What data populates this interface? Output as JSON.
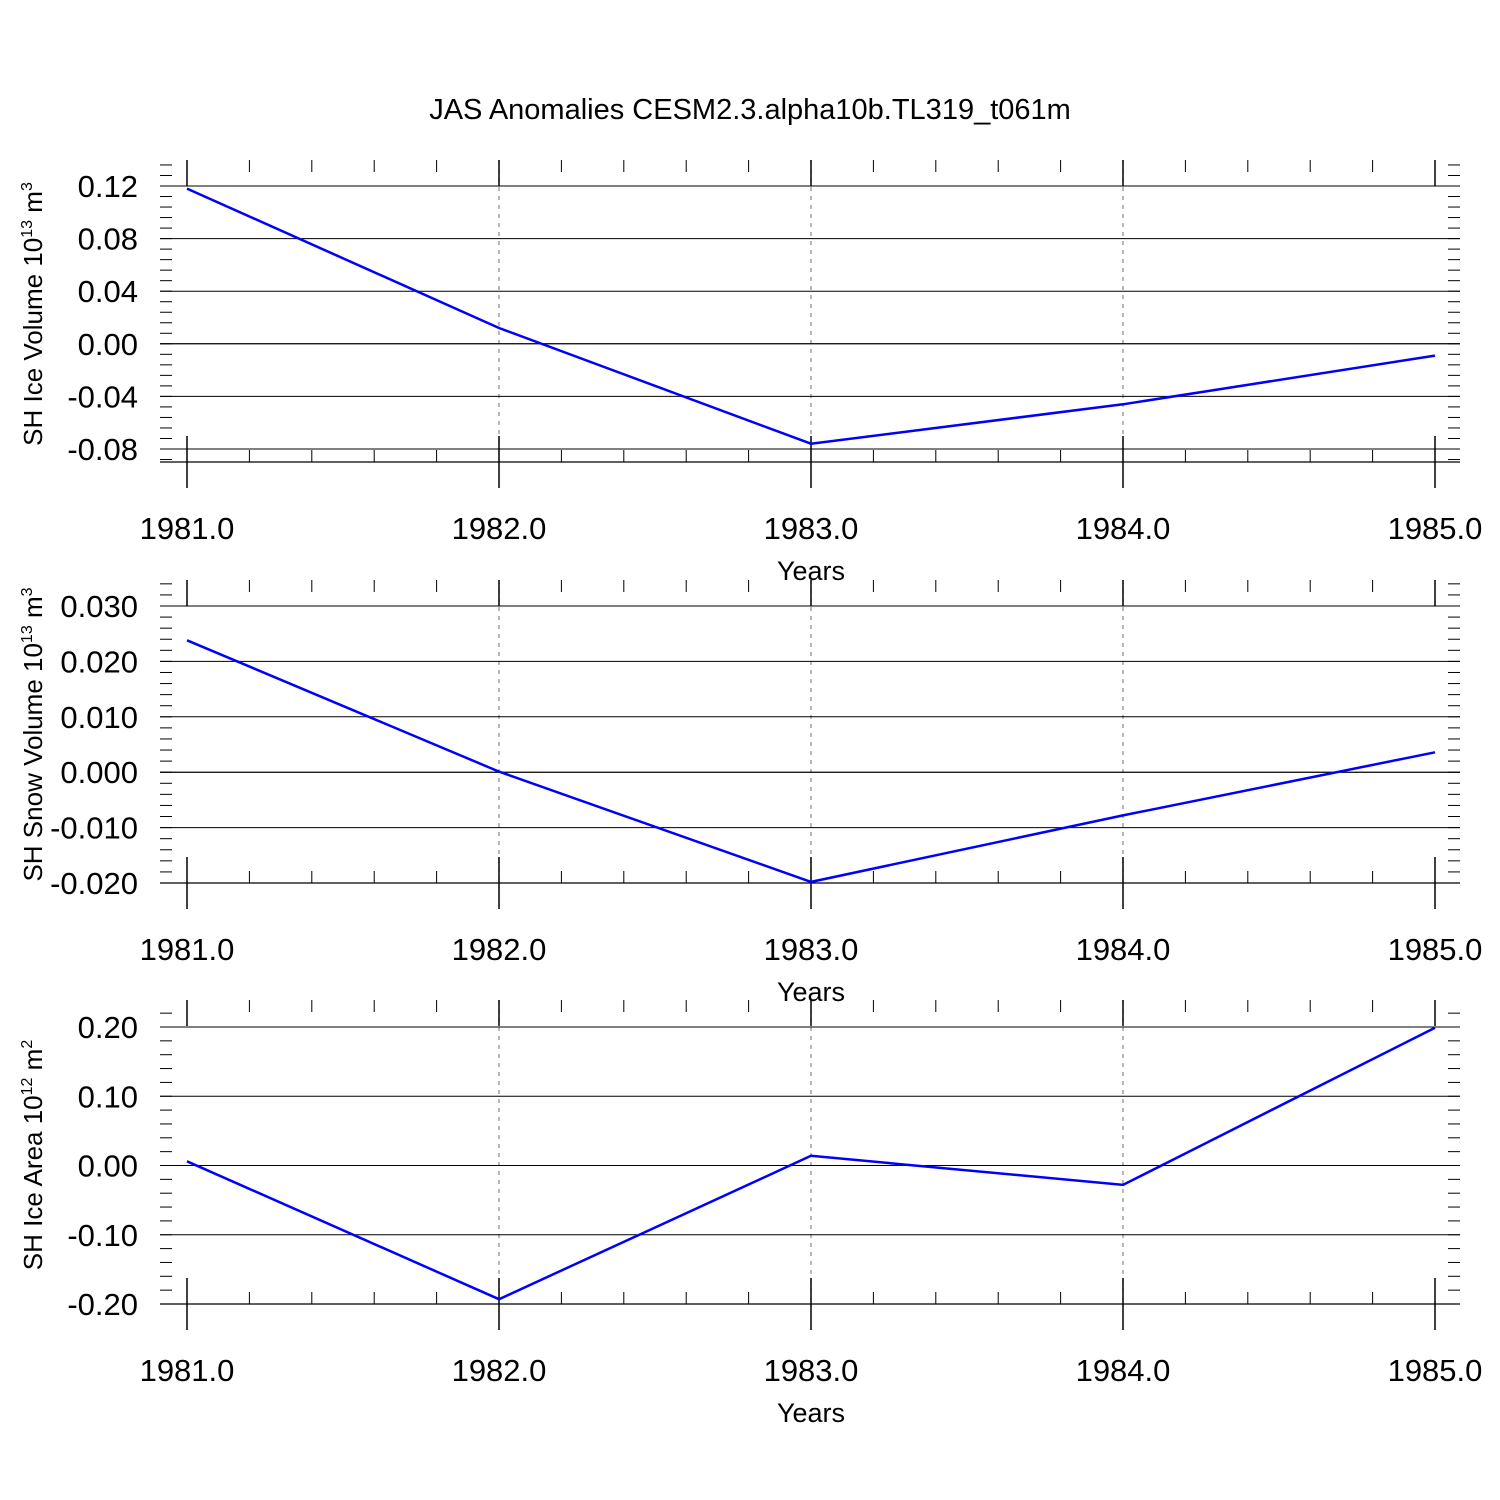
{
  "title": "JAS Anomalies CESM2.3.alpha10b.TL319_t061m",
  "chart_data": [
    {
      "type": "line",
      "ylabel": {
        "main": "SH Ice Volume 10",
        "sup": "13",
        "unit": " m",
        "unit_sup": "3"
      },
      "xlabel": "Years",
      "x": [
        1981,
        1982,
        1983,
        1984,
        1985
      ],
      "xticks": [
        "1981.0",
        "1982.0",
        "1983.0",
        "1984.0",
        "1985.0"
      ],
      "xlim": [
        1981,
        1985
      ],
      "ylim": [
        -0.09,
        0.12
      ],
      "yticks": [
        0.12,
        0.08,
        0.04,
        0.0,
        -0.04,
        -0.08
      ],
      "ytick_labels": [
        "0.12",
        "0.08",
        "0.04",
        "0.00",
        "-0.04",
        "-0.08"
      ],
      "series": [
        {
          "values": [
            0.118,
            0.012,
            -0.076,
            -0.046,
            -0.009
          ],
          "color": "#0000ff"
        }
      ]
    },
    {
      "type": "line",
      "ylabel": {
        "main": "SH Snow Volume 10",
        "sup": "13",
        "unit": " m",
        "unit_sup": "3"
      },
      "xlabel": "Years",
      "x": [
        1981,
        1982,
        1983,
        1984,
        1985
      ],
      "xticks": [
        "1981.0",
        "1982.0",
        "1983.0",
        "1984.0",
        "1985.0"
      ],
      "xlim": [
        1981,
        1985
      ],
      "ylim": [
        -0.02,
        0.03
      ],
      "yticks": [
        0.03,
        0.02,
        0.01,
        0.0,
        -0.01,
        -0.02
      ],
      "ytick_labels": [
        "0.030",
        "0.020",
        "0.010",
        "0.000",
        "-0.010",
        "-0.020"
      ],
      "series": [
        {
          "values": [
            0.0238,
            0.0001,
            -0.0198,
            -0.0078,
            0.0036
          ],
          "color": "#0000ff"
        }
      ]
    },
    {
      "type": "line",
      "ylabel": {
        "main": "SH Ice Area 10",
        "sup": "12",
        "unit": " m",
        "unit_sup": "2"
      },
      "xlabel": "Years",
      "x": [
        1981,
        1982,
        1983,
        1984,
        1985
      ],
      "xticks": [
        "1981.0",
        "1982.0",
        "1983.0",
        "1984.0",
        "1985.0"
      ],
      "xlim": [
        1981,
        1985
      ],
      "ylim": [
        -0.2,
        0.2
      ],
      "yticks": [
        0.2,
        0.1,
        0.0,
        -0.1,
        -0.2
      ],
      "ytick_labels": [
        "0.20",
        "0.10",
        "0.00",
        "-0.10",
        "-0.20"
      ],
      "series": [
        {
          "values": [
            0.006,
            -0.193,
            0.014,
            -0.028,
            0.199
          ],
          "color": "#0000ff"
        }
      ]
    }
  ]
}
